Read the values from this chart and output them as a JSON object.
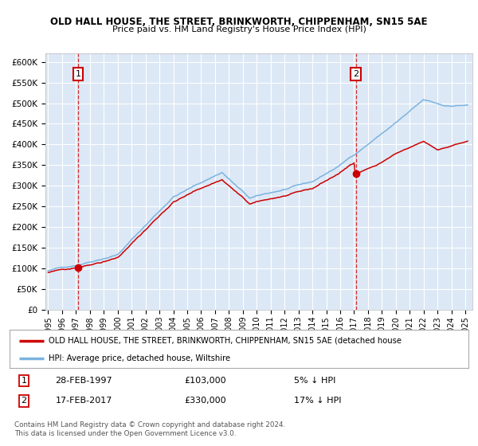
{
  "title1": "OLD HALL HOUSE, THE STREET, BRINKWORTH, CHIPPENHAM, SN15 5AE",
  "title2": "Price paid vs. HM Land Registry's House Price Index (HPI)",
  "bg_color": "#ffffff",
  "plot_bg_color": "#dce8f5",
  "grid_color": "#ffffff",
  "hpi_color": "#7ab3e0",
  "price_color": "#cc0000",
  "sale1_date": 1997.15,
  "sale1_price": 103000,
  "sale2_date": 2017.12,
  "sale2_price": 330000,
  "ylim": [
    0,
    620000
  ],
  "yticks": [
    0,
    50000,
    100000,
    150000,
    200000,
    250000,
    300000,
    350000,
    400000,
    450000,
    500000,
    550000,
    600000
  ],
  "xlim": [
    1994.8,
    2025.5
  ],
  "legend_label1": "OLD HALL HOUSE, THE STREET, BRINKWORTH, CHIPPENHAM, SN15 5AE (detached house",
  "legend_label2": "HPI: Average price, detached house, Wiltshire",
  "note1_num": "1",
  "note1_date": "28-FEB-1997",
  "note1_price": "£103,000",
  "note1_pct": "5% ↓ HPI",
  "note2_num": "2",
  "note2_date": "17-FEB-2017",
  "note2_price": "£330,000",
  "note2_pct": "17% ↓ HPI",
  "footer": "Contains HM Land Registry data © Crown copyright and database right 2024.\nThis data is licensed under the Open Government Licence v3.0."
}
